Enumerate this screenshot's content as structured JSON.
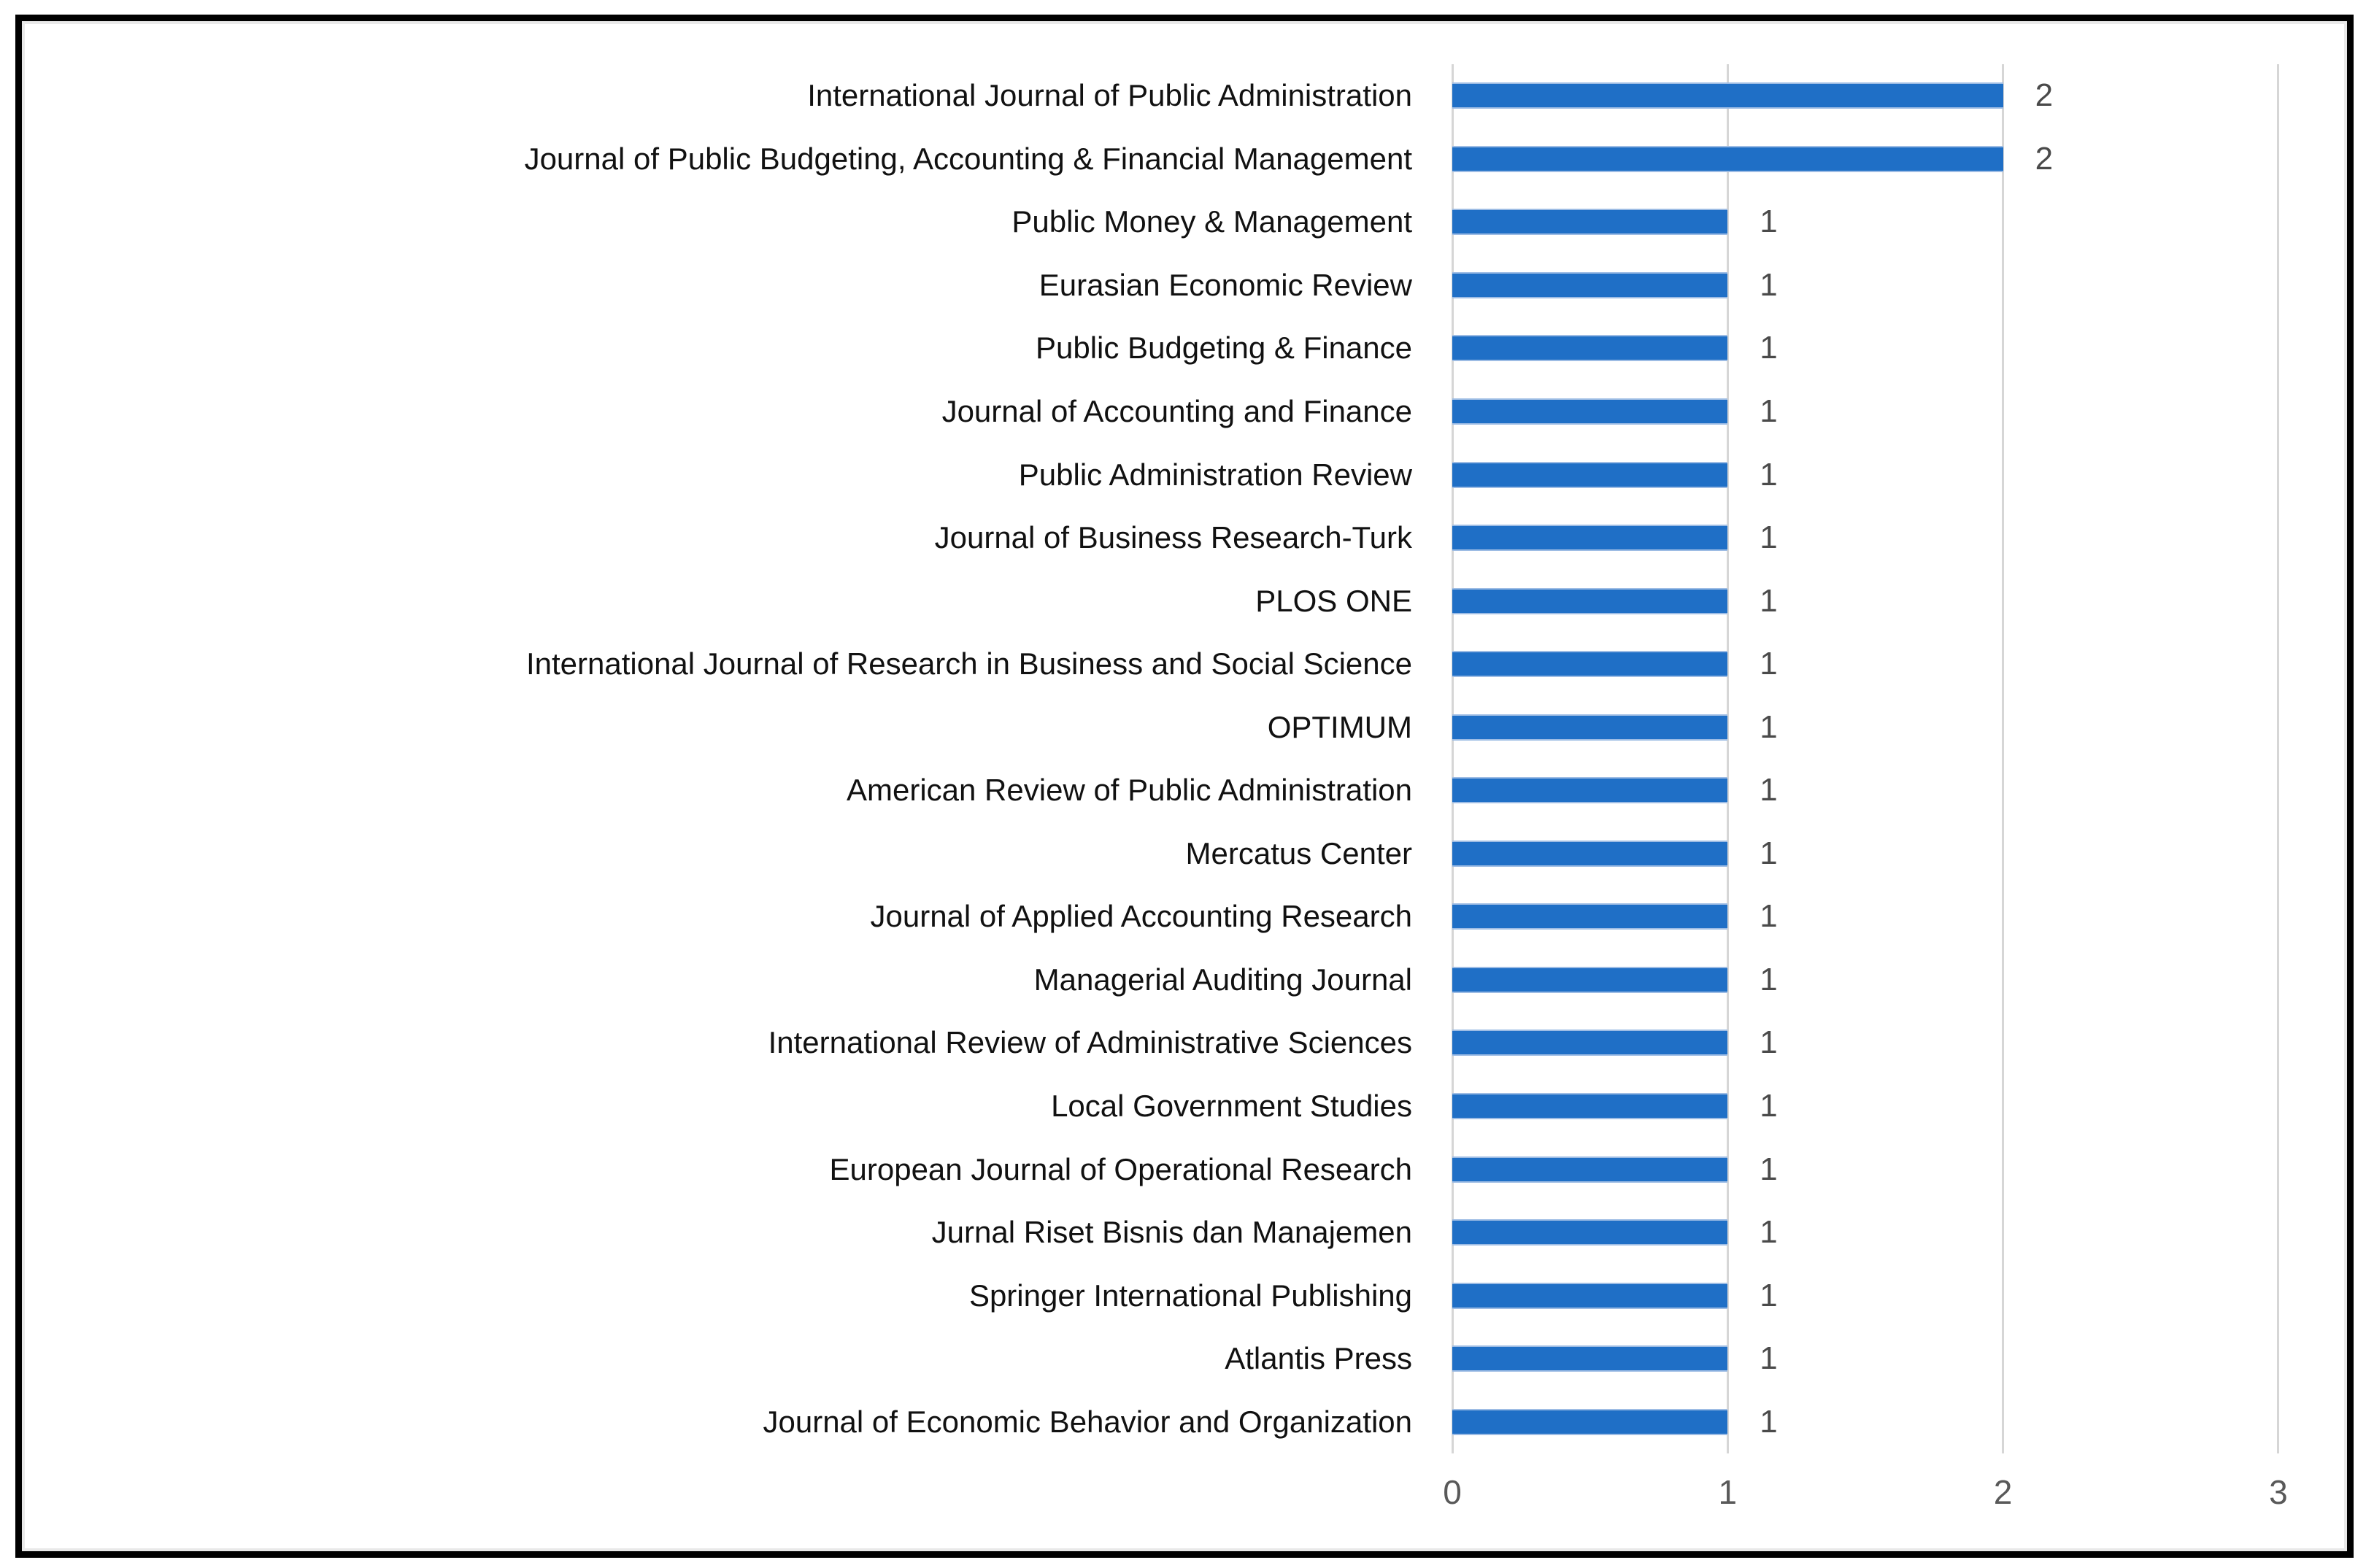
{
  "chart_data": {
    "type": "bar",
    "orientation": "horizontal",
    "title": "",
    "xlabel": "",
    "ylabel": "",
    "categories": [
      "International Journal of Public Administration",
      "Journal of Public Budgeting, Accounting & Financial Management",
      "Public Money & Management",
      "Eurasian Economic Review",
      "Public Budgeting & Finance",
      "Journal of Accounting and Finance",
      "Public Administration Review",
      "Journal of Business Research-Turk",
      "PLOS ONE",
      "International Journal of Research in Business and Social Science",
      "OPTIMUM",
      "American Review of Public Administration",
      "Mercatus Center",
      "Journal of Applied Accounting Research",
      "Managerial Auditing Journal",
      "International Review of Administrative Sciences",
      "Local Government Studies",
      "European Journal of Operational Research",
      "Jurnal Riset Bisnis dan Manajemen",
      "Springer International Publishing",
      "Atlantis Press",
      "Journal of Economic Behavior and Organization"
    ],
    "values": [
      2,
      2,
      1,
      1,
      1,
      1,
      1,
      1,
      1,
      1,
      1,
      1,
      1,
      1,
      1,
      1,
      1,
      1,
      1,
      1,
      1,
      1
    ],
    "data_labels": [
      "2",
      "2",
      "1",
      "1",
      "1",
      "1",
      "1",
      "1",
      "1",
      "1",
      "1",
      "1",
      "1",
      "1",
      "1",
      "1",
      "1",
      "1",
      "1",
      "1",
      "1",
      "1"
    ],
    "x_ticks": [
      "0",
      "1",
      "2",
      "3"
    ],
    "xlim": [
      0,
      3
    ],
    "grid": "vertical-only",
    "legend": "none"
  },
  "colors": {
    "bar": "#1f6fc6",
    "bar_edge": "#9dbce4",
    "gridline": "#d6d6d6",
    "category_label": "#111111",
    "value_label": "#4a4a4a",
    "tick_label": "#595959",
    "frame_border": "#000000",
    "background": "#ffffff"
  }
}
